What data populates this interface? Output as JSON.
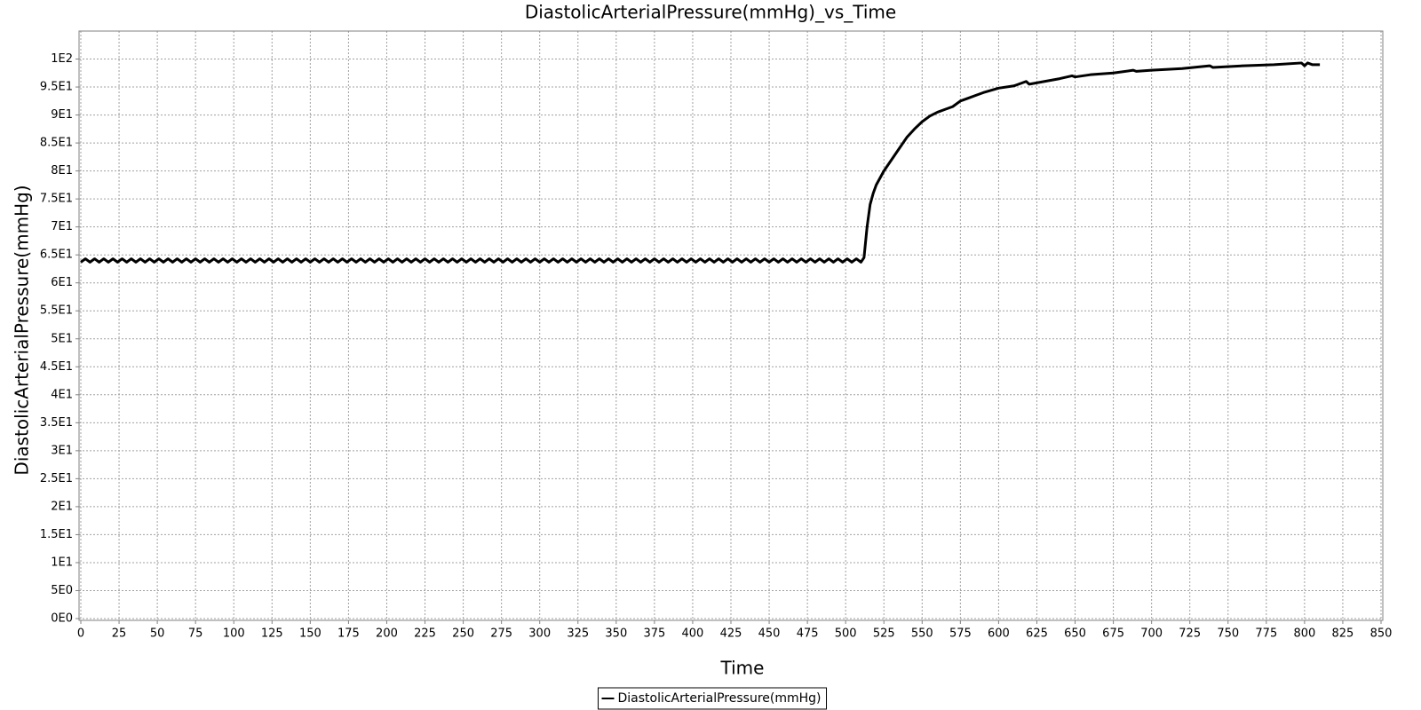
{
  "chart_data": {
    "type": "line",
    "title": "DiastolicArterialPressure(mmHg)_vs_Time",
    "x_label": "Time",
    "y_label": "DiastolicArterialPressure(mmHg)",
    "xlim": [
      0,
      850
    ],
    "xticks": [
      0,
      25,
      50,
      75,
      100,
      125,
      150,
      175,
      200,
      225,
      250,
      275,
      300,
      325,
      350,
      375,
      400,
      425,
      450,
      475,
      500,
      525,
      550,
      575,
      600,
      625,
      650,
      675,
      700,
      725,
      750,
      775,
      800,
      825,
      850
    ],
    "ylim": [
      0,
      105
    ],
    "yticks": [
      {
        "value": 0,
        "label": "0E0"
      },
      {
        "value": 5,
        "label": "5E0"
      },
      {
        "value": 10,
        "label": "1E1"
      },
      {
        "value": 15,
        "label": "1.5E1"
      },
      {
        "value": 20,
        "label": "2E1"
      },
      {
        "value": 25,
        "label": "2.5E1"
      },
      {
        "value": 30,
        "label": "3E1"
      },
      {
        "value": 35,
        "label": "3.5E1"
      },
      {
        "value": 40,
        "label": "4E1"
      },
      {
        "value": 45,
        "label": "4.5E1"
      },
      {
        "value": 50,
        "label": "5E1"
      },
      {
        "value": 55,
        "label": "5.5E1"
      },
      {
        "value": 60,
        "label": "6E1"
      },
      {
        "value": 65,
        "label": "6.5E1"
      },
      {
        "value": 70,
        "label": "7E1"
      },
      {
        "value": 75,
        "label": "7.5E1"
      },
      {
        "value": 80,
        "label": "8E1"
      },
      {
        "value": 85,
        "label": "8.5E1"
      },
      {
        "value": 90,
        "label": "9E1"
      },
      {
        "value": 95,
        "label": "9.5E1"
      },
      {
        "value": 100,
        "label": "1E2"
      }
    ],
    "grid": true,
    "legend": "bottom",
    "series": [
      {
        "name": "DiastolicArterialPressure(mmHg)",
        "color": "#000000",
        "x": [
          0,
          3,
          6,
          9,
          12,
          15,
          18,
          21,
          24,
          27,
          30,
          33,
          36,
          39,
          42,
          45,
          48,
          51,
          54,
          57,
          60,
          63,
          66,
          69,
          72,
          75,
          78,
          81,
          84,
          87,
          90,
          93,
          96,
          99,
          102,
          105,
          108,
          111,
          114,
          117,
          120,
          123,
          126,
          129,
          132,
          135,
          138,
          141,
          144,
          147,
          150,
          153,
          156,
          159,
          162,
          165,
          168,
          171,
          174,
          177,
          180,
          183,
          186,
          189,
          192,
          195,
          198,
          201,
          204,
          207,
          210,
          213,
          216,
          219,
          222,
          225,
          228,
          231,
          234,
          237,
          240,
          243,
          246,
          249,
          252,
          255,
          258,
          261,
          264,
          267,
          270,
          273,
          276,
          279,
          282,
          285,
          288,
          291,
          294,
          297,
          300,
          303,
          306,
          309,
          312,
          315,
          318,
          321,
          324,
          327,
          330,
          333,
          336,
          339,
          342,
          345,
          348,
          351,
          354,
          357,
          360,
          363,
          366,
          369,
          372,
          375,
          378,
          381,
          384,
          387,
          390,
          393,
          396,
          399,
          402,
          405,
          408,
          411,
          414,
          417,
          420,
          423,
          426,
          429,
          432,
          435,
          438,
          441,
          444,
          447,
          450,
          453,
          456,
          459,
          462,
          465,
          468,
          471,
          474,
          477,
          480,
          483,
          486,
          489,
          492,
          495,
          498,
          501,
          504,
          507,
          510,
          512,
          514,
          516,
          518,
          520,
          525,
          530,
          535,
          540,
          545,
          550,
          555,
          560,
          565,
          570,
          575,
          580,
          585,
          590,
          600,
          610,
          618,
          620,
          630,
          640,
          648,
          650,
          660,
          675,
          688,
          690,
          700,
          720,
          738,
          740,
          760,
          780,
          798,
          800,
          802,
          805,
          810
        ],
        "values": [
          63.7,
          64.3,
          63.7,
          64.3,
          63.7,
          64.3,
          63.7,
          64.3,
          63.7,
          64.3,
          63.7,
          64.3,
          63.7,
          64.3,
          63.7,
          64.3,
          63.7,
          64.3,
          63.7,
          64.3,
          63.7,
          64.3,
          63.7,
          64.3,
          63.7,
          64.3,
          63.7,
          64.3,
          63.7,
          64.3,
          63.7,
          64.3,
          63.7,
          64.3,
          63.7,
          64.3,
          63.7,
          64.3,
          63.7,
          64.3,
          63.7,
          64.3,
          63.7,
          64.3,
          63.7,
          64.3,
          63.7,
          64.3,
          63.7,
          64.3,
          63.7,
          64.3,
          63.7,
          64.3,
          63.7,
          64.3,
          63.7,
          64.3,
          63.7,
          64.3,
          63.7,
          64.3,
          63.7,
          64.3,
          63.7,
          64.3,
          63.7,
          64.3,
          63.7,
          64.3,
          63.7,
          64.3,
          63.7,
          64.3,
          63.7,
          64.3,
          63.7,
          64.3,
          63.7,
          64.3,
          63.7,
          64.3,
          63.7,
          64.3,
          63.7,
          64.3,
          63.7,
          64.3,
          63.7,
          64.3,
          63.7,
          64.3,
          63.7,
          64.3,
          63.7,
          64.3,
          63.7,
          64.3,
          63.7,
          64.3,
          63.7,
          64.3,
          63.7,
          64.3,
          63.7,
          64.3,
          63.7,
          64.3,
          63.7,
          64.3,
          63.7,
          64.3,
          63.7,
          64.3,
          63.7,
          64.3,
          63.7,
          64.3,
          63.7,
          64.3,
          63.7,
          64.3,
          63.7,
          64.3,
          63.7,
          64.3,
          63.7,
          64.3,
          63.7,
          64.3,
          63.7,
          64.3,
          63.7,
          64.3,
          63.7,
          64.3,
          63.7,
          64.3,
          63.7,
          64.3,
          63.7,
          64.3,
          63.7,
          64.3,
          63.7,
          64.3,
          63.7,
          64.3,
          63.7,
          64.3,
          63.7,
          64.3,
          63.7,
          64.3,
          63.7,
          64.3,
          63.7,
          64.3,
          63.7,
          64.3,
          63.7,
          64.3,
          63.7,
          64.3,
          63.7,
          64.3,
          63.7,
          64.3,
          63.7,
          64.3,
          63.7,
          64.5,
          70,
          74,
          76,
          77.5,
          80,
          82,
          84,
          86,
          87.5,
          88.8,
          89.8,
          90.5,
          91,
          91.5,
          92.5,
          93,
          93.5,
          94,
          94.8,
          95.2,
          96,
          95.5,
          96,
          96.5,
          97,
          96.8,
          97.2,
          97.5,
          98,
          97.8,
          98,
          98.3,
          98.8,
          98.5,
          98.8,
          99,
          99.3,
          98.8,
          99.3,
          99,
          99
        ]
      }
    ]
  }
}
